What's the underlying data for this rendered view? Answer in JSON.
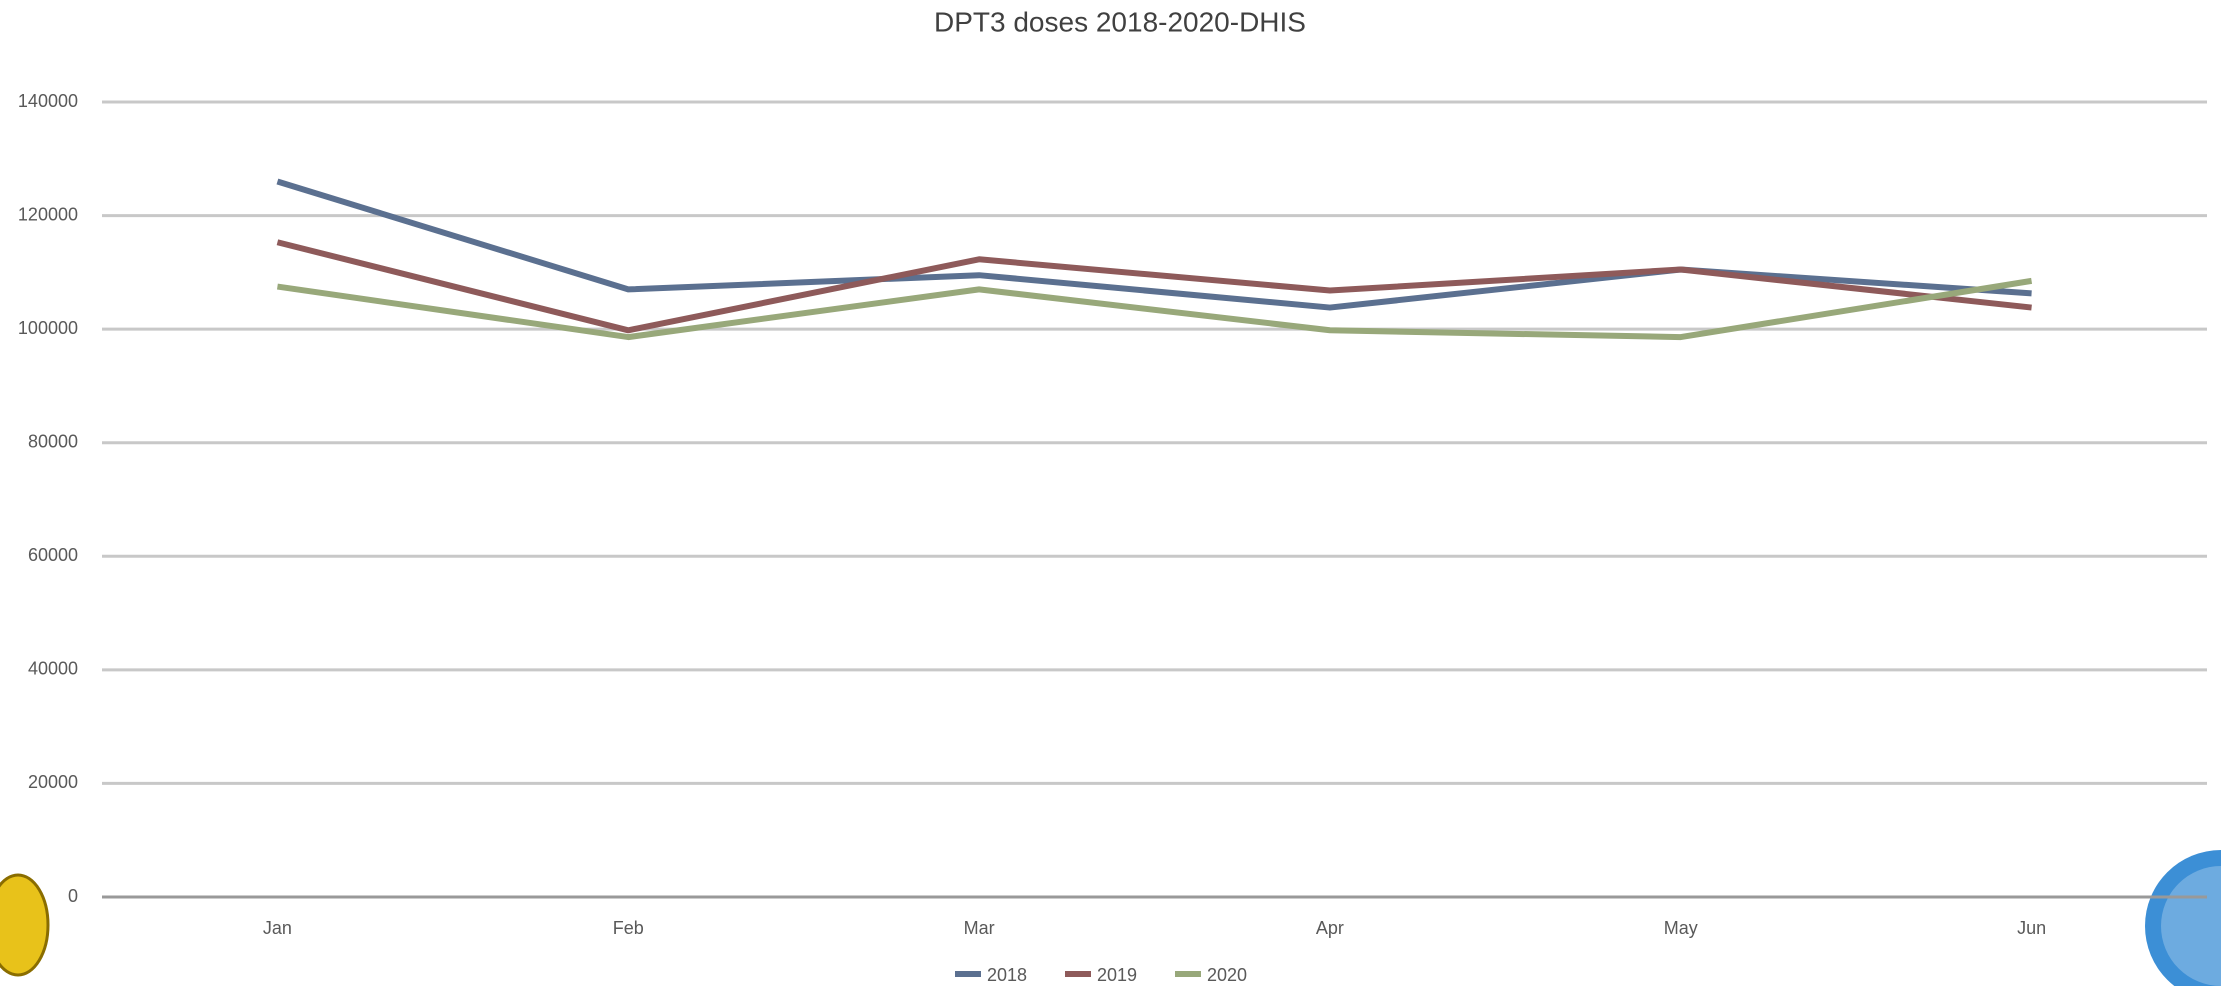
{
  "chart_data": {
    "type": "line",
    "title": "DPT3 doses 2018-2020-DHIS",
    "categories": [
      "Jan",
      "Feb",
      "Mar",
      "Apr",
      "May",
      "Jun"
    ],
    "series": [
      {
        "name": "2018",
        "color": "#5b7090",
        "values": [
          126000,
          107000,
          109500,
          103800,
          110500,
          106300
        ]
      },
      {
        "name": "2019",
        "color": "#8e5a5a",
        "values": [
          115300,
          99800,
          112300,
          106800,
          110500,
          103800
        ]
      },
      {
        "name": "2020",
        "color": "#98a87a",
        "values": [
          107500,
          98600,
          107000,
          99800,
          98600,
          108500
        ]
      }
    ],
    "ylim": [
      0,
      140000
    ],
    "yticks": [
      0,
      20000,
      40000,
      60000,
      80000,
      100000,
      120000,
      140000
    ],
    "grid": true,
    "legend": "bottom"
  }
}
